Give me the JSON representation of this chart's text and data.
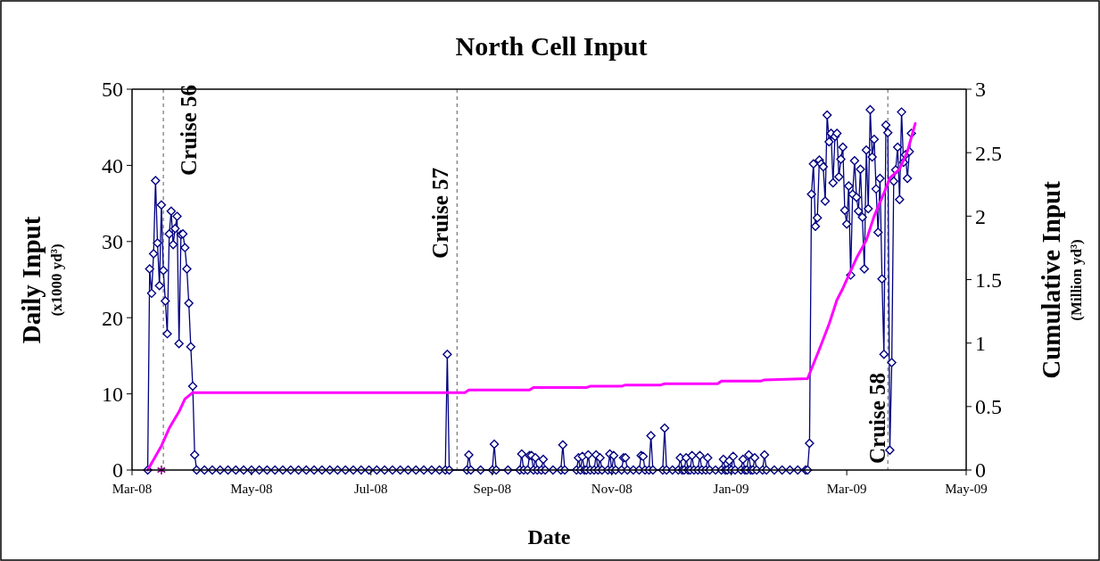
{
  "chart_data": {
    "type": "line",
    "title": "North Cell Input",
    "xlabel": "Date",
    "ylabel": "Daily Input\n(x1000 yd³)",
    "y2label": "Cumulative Input\n(Million yd³)",
    "xlim": [
      "2008-03-01",
      "2009-05-01"
    ],
    "xticks": [
      {
        "value": "2008-03-01",
        "label": "Mar-08"
      },
      {
        "value": "2008-05-01",
        "label": "May-08"
      },
      {
        "value": "2008-07-01",
        "label": "Jul-08"
      },
      {
        "value": "2008-09-01",
        "label": "Sep-08"
      },
      {
        "value": "2008-11-01",
        "label": "Nov-08"
      },
      {
        "value": "2009-01-01",
        "label": "Jan-09"
      },
      {
        "value": "2009-03-01",
        "label": "Mar-09"
      },
      {
        "value": "2009-05-01",
        "label": "May-09"
      }
    ],
    "ylim": [
      0,
      50
    ],
    "yticks": [
      0,
      10,
      20,
      30,
      40,
      50
    ],
    "y2lim": [
      0,
      3
    ],
    "y2ticks": [
      0,
      0.5,
      1,
      1.5,
      2,
      2.5,
      3
    ],
    "grid": false,
    "line_style": "solid",
    "ref_lines": [
      {
        "axis": "x",
        "value": "2008-03-17",
        "label": "Cruise 56",
        "color": "#808080",
        "line_style": "dashed"
      },
      {
        "axis": "x",
        "value": "2008-08-14",
        "label": "Cruise 57",
        "color": "#808080",
        "line_style": "dashed"
      },
      {
        "axis": "x",
        "value": "2009-03-22",
        "label": "Cruise 58",
        "color": "#808080",
        "line_style": "dashed"
      }
    ],
    "series": [
      {
        "color": "#000080",
        "marker": "diamond",
        "x": [
          "2008-03-09",
          "2008-03-10",
          "2008-03-11",
          "2008-03-12",
          "2008-03-13",
          "2008-03-14",
          "2008-03-15",
          "2008-03-16",
          "2008-03-17",
          "2008-03-18",
          "2008-03-19",
          "2008-03-20",
          "2008-03-21",
          "2008-03-22",
          "2008-03-23",
          "2008-03-24",
          "2008-03-25",
          "2008-03-26",
          "2008-03-27",
          "2008-03-28",
          "2008-03-29",
          "2008-03-30",
          "2008-03-31",
          "2008-04-01",
          "2008-04-02",
          "2008-04-03",
          "2008-04-07",
          "2008-04-11",
          "2008-04-15",
          "2008-04-19",
          "2008-04-23",
          "2008-04-27",
          "2008-05-01",
          "2008-05-05",
          "2008-05-09",
          "2008-05-13",
          "2008-05-17",
          "2008-05-21",
          "2008-05-25",
          "2008-05-29",
          "2008-06-02",
          "2008-06-06",
          "2008-06-10",
          "2008-06-14",
          "2008-06-18",
          "2008-06-22",
          "2008-06-26",
          "2008-06-30",
          "2008-07-04",
          "2008-07-08",
          "2008-07-12",
          "2008-07-16",
          "2008-07-20",
          "2008-07-24",
          "2008-07-28",
          "2008-08-01",
          "2008-08-05",
          "2008-08-08",
          "2008-08-09",
          "2008-08-10",
          "2008-08-19",
          "2008-08-20",
          "2008-08-21",
          "2008-08-26",
          "2008-09-01",
          "2008-09-02",
          "2008-09-03",
          "2008-09-09",
          "2008-09-15",
          "2008-09-16",
          "2008-09-17",
          "2008-09-19",
          "2008-09-20",
          "2008-09-21",
          "2008-09-22",
          "2008-09-23",
          "2008-09-24",
          "2008-09-26",
          "2008-09-27",
          "2008-09-28",
          "2008-10-02",
          "2008-10-06",
          "2008-10-07",
          "2008-10-08",
          "2008-10-14",
          "2008-10-15",
          "2008-10-16",
          "2008-10-17",
          "2008-10-18",
          "2008-10-19",
          "2008-10-20",
          "2008-10-21",
          "2008-10-23",
          "2008-10-24",
          "2008-10-25",
          "2008-10-26",
          "2008-10-27",
          "2008-10-30",
          "2008-10-31",
          "2008-11-01",
          "2008-11-02",
          "2008-11-03",
          "2008-11-06",
          "2008-11-07",
          "2008-11-08",
          "2008-11-09",
          "2008-11-12",
          "2008-11-15",
          "2008-11-16",
          "2008-11-17",
          "2008-11-18",
          "2008-11-20",
          "2008-11-21",
          "2008-11-22",
          "2008-11-27",
          "2008-11-28",
          "2008-11-29",
          "2008-12-02",
          "2008-12-05",
          "2008-12-06",
          "2008-12-07",
          "2008-12-08",
          "2008-12-09",
          "2008-12-10",
          "2008-12-11",
          "2008-12-12",
          "2008-12-13",
          "2008-12-15",
          "2008-12-16",
          "2008-12-17",
          "2008-12-19",
          "2008-12-20",
          "2008-12-21",
          "2008-12-24",
          "2008-12-27",
          "2008-12-28",
          "2008-12-29",
          "2008-12-30",
          "2008-12-31",
          "2009-01-01",
          "2009-01-02",
          "2009-01-03",
          "2009-01-06",
          "2009-01-07",
          "2009-01-08",
          "2009-01-09",
          "2009-01-10",
          "2009-01-11",
          "2009-01-12",
          "2009-01-13",
          "2009-01-14",
          "2009-01-17",
          "2009-01-18",
          "2009-01-19",
          "2009-01-23",
          "2009-01-27",
          "2009-01-31",
          "2009-02-04",
          "2009-02-08",
          "2009-02-09",
          "2009-02-10",
          "2009-02-11",
          "2009-02-12",
          "2009-02-13",
          "2009-02-14",
          "2009-02-15",
          "2009-02-16",
          "2009-02-17",
          "2009-02-18",
          "2009-02-19",
          "2009-02-20",
          "2009-02-21",
          "2009-02-22",
          "2009-02-23",
          "2009-02-24",
          "2009-02-25",
          "2009-02-26",
          "2009-02-27",
          "2009-02-28",
          "2009-03-01",
          "2009-03-02",
          "2009-03-03",
          "2009-03-04",
          "2009-03-05",
          "2009-03-06",
          "2009-03-07",
          "2009-03-08",
          "2009-03-09",
          "2009-03-10",
          "2009-03-11",
          "2009-03-12",
          "2009-03-13",
          "2009-03-14",
          "2009-03-15",
          "2009-03-16",
          "2009-03-17",
          "2009-03-18",
          "2009-03-19",
          "2009-03-20",
          "2009-03-21",
          "2009-03-22",
          "2009-03-23",
          "2009-03-24",
          "2009-03-25",
          "2009-03-26",
          "2009-03-27",
          "2009-03-28",
          "2009-03-29",
          "2009-03-30",
          "2009-03-31",
          "2009-04-01",
          "2009-04-02",
          "2009-04-03"
        ],
        "values": [
          0,
          26.4,
          23.2,
          28.4,
          38,
          29.8,
          24.2,
          34.8,
          26.2,
          22.2,
          17.9,
          31,
          34,
          29.6,
          31.7,
          33.3,
          16.6,
          30.9,
          31,
          29.2,
          26.4,
          21.9,
          16.2,
          11,
          2,
          0,
          0,
          0,
          0,
          0,
          0,
          0,
          0,
          0,
          0,
          0,
          0,
          0,
          0,
          0,
          0,
          0,
          0,
          0,
          0,
          0,
          0,
          0,
          0,
          0,
          0,
          0,
          0,
          0,
          0,
          0,
          0,
          0,
          15.2,
          0,
          0,
          2,
          0,
          0,
          0,
          3.4,
          0,
          0,
          0,
          2.1,
          0,
          0,
          1.9,
          1.9,
          0,
          1.6,
          0,
          0,
          1.4,
          0,
          0,
          0,
          3.3,
          0,
          0,
          1.6,
          0,
          1.8,
          0,
          0,
          2,
          0,
          0,
          2,
          0,
          1.6,
          0,
          0,
          2.1,
          0,
          1.9,
          0,
          0,
          1.6,
          1.6,
          0,
          0,
          0,
          1.9,
          1.8,
          0,
          0,
          4.5,
          0,
          0,
          5.5,
          0,
          0,
          0,
          1.6,
          0,
          0,
          1.6,
          0,
          0,
          1.9,
          0,
          0,
          1.9,
          0,
          0,
          1.6,
          0,
          0,
          0,
          1.4,
          0,
          0,
          1.2,
          0,
          1.8,
          0,
          0,
          1.4,
          0,
          0,
          2,
          0,
          0,
          1.6,
          0,
          0,
          2,
          0,
          0,
          0,
          0,
          0,
          0,
          0,
          3.5,
          36.2,
          40.2,
          32,
          33.1,
          40.7,
          40.2,
          39.8,
          35.3,
          46.6,
          43.1,
          44.2,
          37.7,
          43.8,
          44.2,
          38.5,
          40.8,
          42.4,
          34.1,
          32.3,
          37.3,
          25.6,
          36.2,
          40.6,
          35.8,
          34,
          39.5,
          33.2,
          26.4,
          42,
          34.3,
          47.3,
          41.1,
          43.4,
          36.9,
          31.2,
          38.3,
          25.1,
          15.2,
          45.3,
          44.3,
          2.6,
          14.1,
          37.9,
          39.4,
          42.4,
          35.5,
          47,
          40.4,
          41.4,
          38.3,
          41.8,
          44.2
        ]
      },
      {
        "color": "#ff00ff",
        "axis": "y2",
        "marker": "none",
        "x": [
          "2008-03-09",
          "2008-03-16",
          "2008-03-20",
          "2008-03-25",
          "2008-03-28",
          "2008-04-01",
          "2008-08-18",
          "2008-08-20",
          "2008-09-20",
          "2008-09-22",
          "2008-10-19",
          "2008-10-21",
          "2008-11-06",
          "2008-11-08",
          "2008-11-26",
          "2008-11-28",
          "2008-12-25",
          "2008-12-27",
          "2009-01-16",
          "2009-01-18",
          "2009-02-09",
          "2009-02-15",
          "2009-02-20",
          "2009-02-24",
          "2009-02-27",
          "2009-03-06",
          "2009-03-11",
          "2009-03-15",
          "2009-03-20",
          "2009-03-23",
          "2009-03-28",
          "2009-04-01",
          "2009-04-05"
        ],
        "values": [
          0,
          0.19,
          0.33,
          0.46,
          0.56,
          0.61,
          0.61,
          0.63,
          0.63,
          0.65,
          0.65,
          0.66,
          0.66,
          0.67,
          0.67,
          0.68,
          0.68,
          0.7,
          0.7,
          0.71,
          0.72,
          0.95,
          1.15,
          1.34,
          1.43,
          1.67,
          1.81,
          2,
          2.18,
          2.3,
          2.37,
          2.51,
          2.73
        ]
      },
      {
        "type": "scatter",
        "color": "#800080",
        "marker": "cross",
        "x": [
          "2008-03-16"
        ],
        "values": [
          0
        ]
      }
    ]
  }
}
